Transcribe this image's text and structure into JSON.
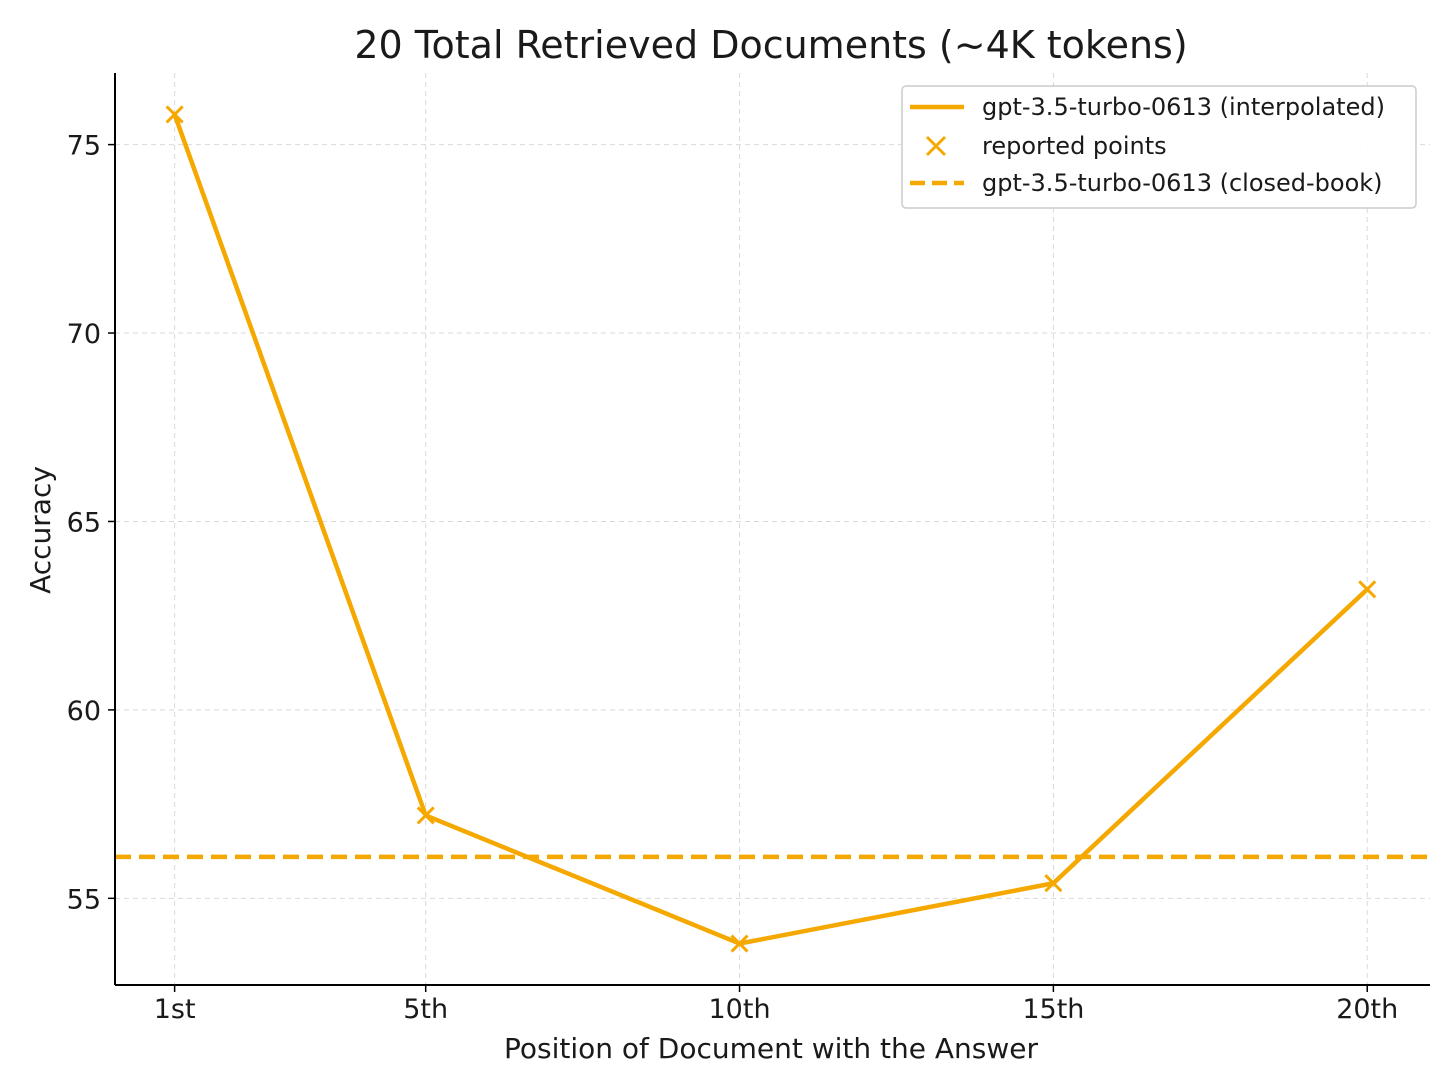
{
  "chart_data": {
    "type": "line",
    "title": "20 Total Retrieved Documents (~4K tokens)",
    "xlabel": "Position of Document with the Answer",
    "ylabel": "Accuracy",
    "x": [
      1,
      5,
      10,
      15,
      20
    ],
    "x_tick_labels": [
      "1st",
      "5th",
      "10th",
      "15th",
      "20th"
    ],
    "y_ticks": [
      55,
      60,
      65,
      70,
      75
    ],
    "xlim": [
      0.05,
      21
    ],
    "ylim": [
      52.7,
      76.9
    ],
    "series": [
      {
        "name": "gpt-3.5-turbo-0613 (interpolated)",
        "style": "solid-line",
        "values": [
          75.8,
          57.2,
          53.8,
          55.4,
          63.2
        ]
      }
    ],
    "markers": {
      "name": "reported points",
      "marker": "x",
      "values": [
        75.8,
        57.2,
        53.8,
        55.4,
        63.2
      ]
    },
    "reference_lines": [
      {
        "name": "gpt-3.5-turbo-0613 (closed-book)",
        "style": "dashed",
        "y": 56.1
      }
    ],
    "legend_position": "top-right",
    "grid": true,
    "color": "#f5a800"
  }
}
